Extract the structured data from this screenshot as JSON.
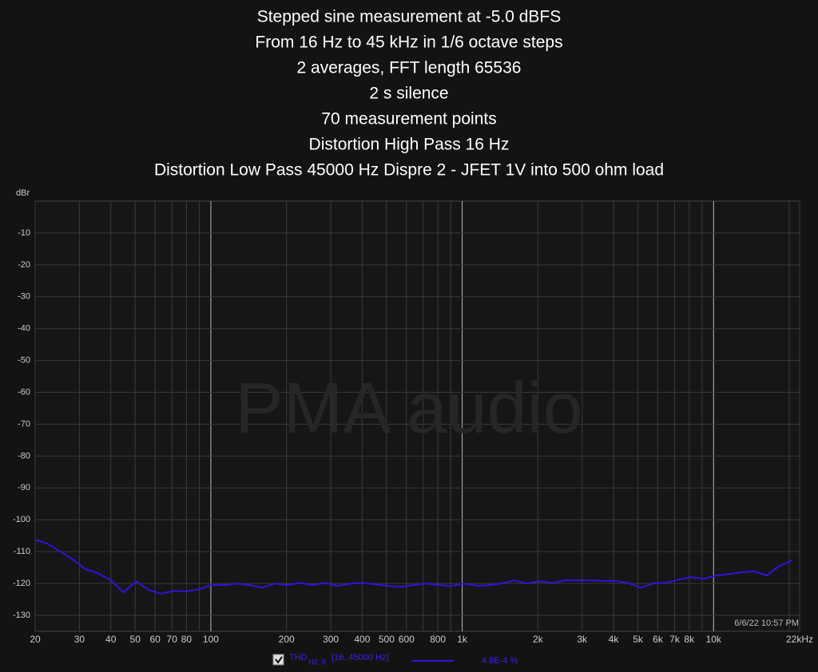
{
  "chart_data": {
    "type": "line",
    "title": [
      "Stepped sine measurement at -5.0 dBFS",
      "From 16 Hz to 45 kHz in 1/6 octave steps",
      "2 averages, FFT length 65536",
      "2 s silence",
      "70 measurement points",
      "Distortion High Pass 16 Hz",
      "Distortion Low Pass 45000 Hz Dispre 2 - JFET 1V into 500 ohm load"
    ],
    "y_label": "dBr",
    "watermark": "PMA audio",
    "timestamp": "6/6/22 10:57 PM",
    "x_log": true,
    "grid": true,
    "xlim": [
      20,
      22000
    ],
    "ylim": [
      -135,
      0
    ],
    "xticks": [
      20,
      30,
      40,
      50,
      60,
      70,
      80,
      100,
      200,
      300,
      400,
      500,
      600,
      800,
      {
        "value": 1000,
        "label": "1k"
      },
      {
        "value": 2000,
        "label": "2k"
      },
      {
        "value": 3000,
        "label": "3k"
      },
      {
        "value": 4000,
        "label": "4k"
      },
      {
        "value": 5000,
        "label": "5k"
      },
      {
        "value": 6000,
        "label": "6k"
      },
      {
        "value": 7000,
        "label": "7k"
      },
      {
        "value": 8000,
        "label": "8k"
      },
      {
        "value": 10000,
        "label": "10k"
      },
      {
        "value": 22000,
        "label": "22kHz"
      }
    ],
    "x_minor_ticks": [
      90,
      700,
      900,
      9000,
      20000
    ],
    "yticks": [
      -10,
      -20,
      -30,
      -40,
      -50,
      -60,
      -70,
      -80,
      -90,
      -100,
      -110,
      -120,
      -130
    ],
    "x": [
      20,
      22.4,
      25.2,
      28.3,
      31.7,
      35.6,
      40,
      44.9,
      50.4,
      56.6,
      63.5,
      71.3,
      80,
      89.8,
      100.8,
      113.1,
      127,
      142.5,
      160,
      179.6,
      201.6,
      226.3,
      254,
      285.1,
      320,
      359.2,
      403.2,
      452.5,
      508,
      570.2,
      640,
      718.4,
      806.3,
      905.1,
      1016,
      1140.4,
      1280,
      1436.8,
      1612.7,
      1810.2,
      2032,
      2280.8,
      2560,
      2873.5,
      3225.4,
      3620.4,
      4064,
      4561.6,
      5120,
      5747,
      6450.8,
      7240.8,
      8128,
      9123.3,
      10240,
      11494,
      12901.7,
      14481.5,
      16256,
      18246.6,
      20480
    ],
    "series": [
      {
        "name": "THD",
        "name_sub": "H2..9",
        "range": "[16..45000 Hz]",
        "readout": "4.8E-4 %",
        "color": "#3311dd",
        "values": [
          -106.3,
          -107.5,
          -110,
          -112.5,
          -115.5,
          -116.8,
          -119,
          -122.8,
          -119.3,
          -122,
          -123.2,
          -122.3,
          -122.5,
          -121.8,
          -120.5,
          -120.5,
          -120,
          -120.5,
          -121.3,
          -120,
          -120.5,
          -119.8,
          -120.5,
          -119.8,
          -120.8,
          -120,
          -119.8,
          -120.3,
          -120.8,
          -121,
          -120.5,
          -120,
          -120.5,
          -120.8,
          -120,
          -120.7,
          -120.5,
          -120,
          -119,
          -120,
          -119.3,
          -119.8,
          -119,
          -119,
          -119,
          -119.2,
          -119.2,
          -119.8,
          -121.3,
          -120,
          -119.8,
          -118.8,
          -118,
          -118.5,
          -117.5,
          -117,
          -116.5,
          -116.2,
          -117.5,
          -114.5,
          -112.8
        ]
      }
    ]
  }
}
